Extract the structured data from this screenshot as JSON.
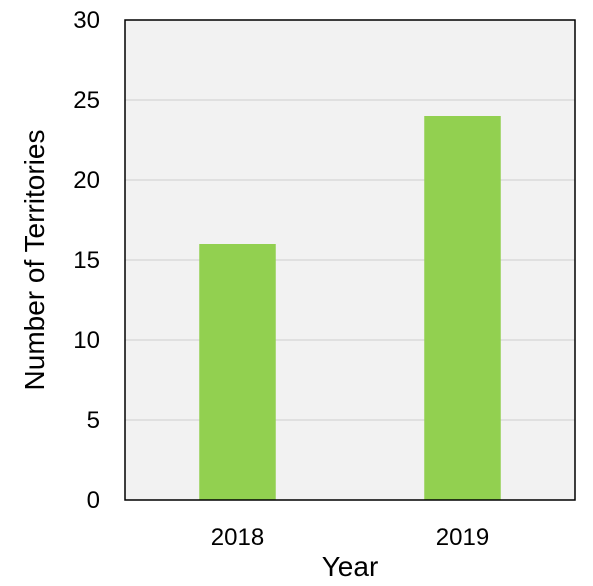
{
  "chart_data": {
    "type": "bar",
    "categories": [
      "2018",
      "2019"
    ],
    "values": [
      16,
      24
    ],
    "title": "",
    "xlabel": "Year",
    "ylabel": "Number of Territories",
    "ylim": [
      0,
      30
    ],
    "yticks": [
      0,
      5,
      10,
      15,
      20,
      25,
      30
    ],
    "grid": true,
    "legend": "none",
    "colors": {
      "bar": "#92d050",
      "plot_background": "#f2f2f2",
      "gridline": "#d9d9d9",
      "axis": "#000000"
    }
  }
}
